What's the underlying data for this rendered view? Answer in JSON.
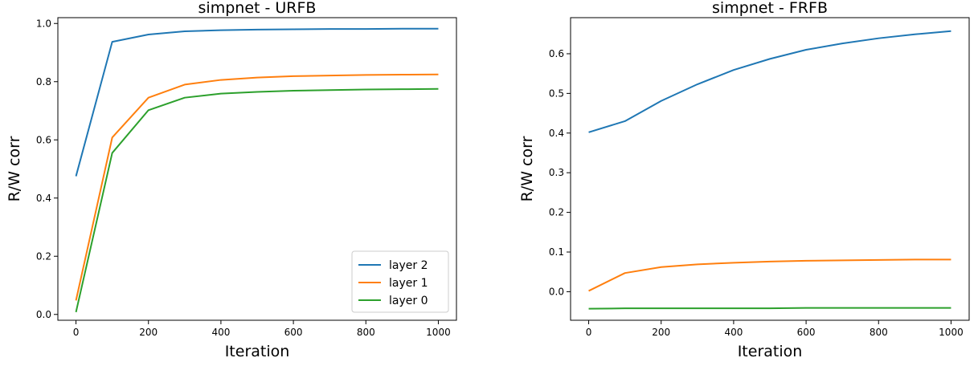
{
  "chart_data": [
    {
      "type": "line",
      "title": "simpnet - URFB",
      "xlabel": "Iteration",
      "ylabel": "R/W corr",
      "xlim": [
        -50,
        1050
      ],
      "ylim": [
        -0.02,
        1.02
      ],
      "xticks": [
        0,
        200,
        400,
        600,
        800,
        1000
      ],
      "yticks": [
        0.0,
        0.2,
        0.4,
        0.6,
        0.8,
        1.0
      ],
      "ytick_labels": [
        "0.0",
        "0.2",
        "0.4",
        "0.6",
        "0.8",
        "1.0"
      ],
      "x": [
        0,
        100,
        200,
        300,
        400,
        500,
        600,
        700,
        800,
        900,
        1000
      ],
      "legend": "lower-right",
      "series": [
        {
          "name": "layer 2",
          "color": "#1f77b4",
          "values": [
            0.475,
            0.937,
            0.962,
            0.973,
            0.977,
            0.979,
            0.98,
            0.981,
            0.981,
            0.982,
            0.982
          ]
        },
        {
          "name": "layer 1",
          "color": "#ff7f0e",
          "values": [
            0.048,
            0.608,
            0.745,
            0.79,
            0.806,
            0.814,
            0.819,
            0.821,
            0.823,
            0.824,
            0.825
          ]
        },
        {
          "name": "layer 0",
          "color": "#2ca02c",
          "values": [
            0.008,
            0.555,
            0.702,
            0.745,
            0.759,
            0.765,
            0.769,
            0.771,
            0.773,
            0.774,
            0.775
          ]
        }
      ]
    },
    {
      "type": "line",
      "title": "simpnet - FRFB",
      "xlabel": "Iteration",
      "ylabel": "R/W corr",
      "xlim": [
        -50,
        1050
      ],
      "ylim": [
        -0.072,
        0.691
      ],
      "xticks": [
        0,
        200,
        400,
        600,
        800,
        1000
      ],
      "yticks": [
        0.0,
        0.1,
        0.2,
        0.3,
        0.4,
        0.5,
        0.6
      ],
      "ytick_labels": [
        "0.0",
        "0.1",
        "0.2",
        "0.3",
        "0.4",
        "0.5",
        "0.6"
      ],
      "x": [
        0,
        100,
        200,
        300,
        400,
        500,
        600,
        700,
        800,
        900,
        1000
      ],
      "series": [
        {
          "color": "#1f77b4",
          "values": [
            0.402,
            0.43,
            0.481,
            0.523,
            0.559,
            0.587,
            0.61,
            0.626,
            0.639,
            0.649,
            0.657
          ]
        },
        {
          "color": "#ff7f0e",
          "values": [
            0.002,
            0.047,
            0.062,
            0.069,
            0.073,
            0.076,
            0.078,
            0.079,
            0.08,
            0.081,
            0.081
          ]
        },
        {
          "color": "#2ca02c",
          "values": [
            -0.043,
            -0.042,
            -0.042,
            -0.042,
            -0.042,
            -0.042,
            -0.041,
            -0.041,
            -0.041,
            -0.041,
            -0.041
          ]
        }
      ]
    }
  ]
}
